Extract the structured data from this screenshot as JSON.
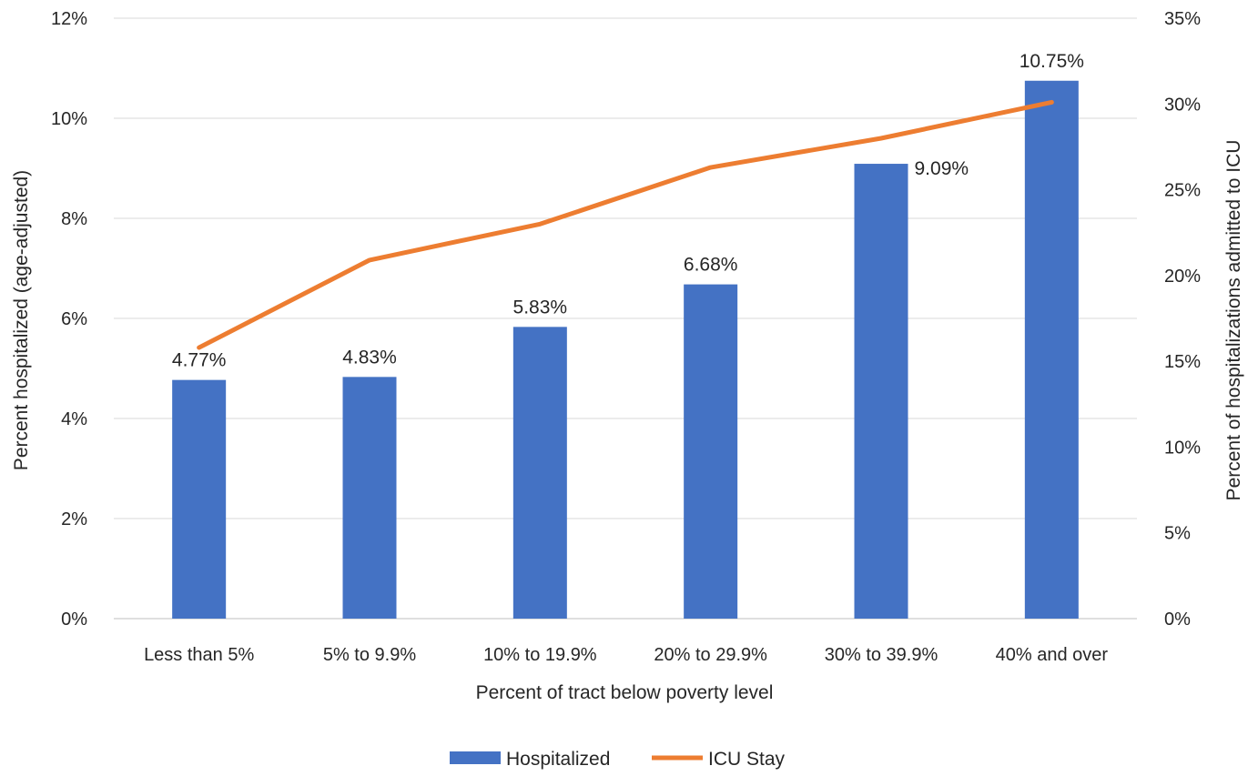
{
  "chart_data": {
    "type": "bar",
    "categories": [
      "Less than 5%",
      "5% to 9.9%",
      "10% to 19.9%",
      "20% to 29.9%",
      "30% to 39.9%",
      "40% and over"
    ],
    "series": [
      {
        "name": "Hospitalized",
        "type": "bar",
        "axis": "left",
        "color": "#4472c4",
        "values": [
          4.77,
          4.83,
          5.83,
          6.68,
          9.09,
          10.75
        ],
        "data_labels": [
          "4.77%",
          "4.83%",
          "5.83%",
          "6.68%",
          "9.09%",
          "10.75%"
        ]
      },
      {
        "name": "ICU Stay",
        "type": "line",
        "axis": "right",
        "color": "#ed7d31",
        "values": [
          15.8,
          20.9,
          23.0,
          26.3,
          28.0,
          30.1
        ]
      }
    ],
    "xlabel": "Percent of tract below poverty level",
    "ylabel": "Percent hospitalized (age-adjusted)",
    "y2label": "Percent of hospitalizations admitted to ICU",
    "ylim": [
      0,
      12
    ],
    "y2lim": [
      0,
      35
    ],
    "yticks": [
      "0%",
      "2%",
      "4%",
      "6%",
      "8%",
      "10%",
      "12%"
    ],
    "y2ticks": [
      "0%",
      "5%",
      "10%",
      "15%",
      "20%",
      "25%",
      "30%",
      "35%"
    ],
    "grid": true,
    "legend_position": "bottom"
  }
}
